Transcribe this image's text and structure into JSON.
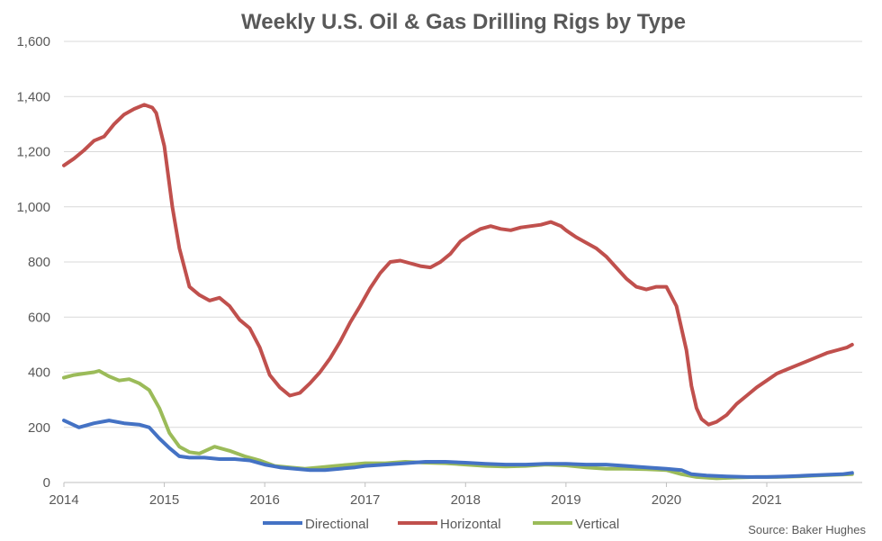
{
  "chart_data": {
    "type": "line",
    "title": "Weekly U.S. Oil & Gas Drilling Rigs by Type",
    "xlabel": "",
    "ylabel": "",
    "xlim": [
      2014.0,
      2021.95
    ],
    "ylim": [
      0,
      1600
    ],
    "x_ticks": [
      "2014",
      "2015",
      "2016",
      "2017",
      "2018",
      "2019",
      "2020",
      "2021"
    ],
    "y_ticks": [
      "0",
      "200",
      "400",
      "600",
      "800",
      "1,000",
      "1,200",
      "1,400",
      "1,600"
    ],
    "grid": true,
    "legend_position": "bottom",
    "source": "Source: Baker Hughes",
    "series": [
      {
        "name": "Directional",
        "color": "#4472c4",
        "x": [
          2014.0,
          2014.15,
          2014.3,
          2014.45,
          2014.6,
          2014.75,
          2014.85,
          2014.95,
          2015.05,
          2015.15,
          2015.25,
          2015.4,
          2015.55,
          2015.7,
          2015.85,
          2016.0,
          2016.15,
          2016.3,
          2016.45,
          2016.6,
          2016.75,
          2016.9,
          2017.0,
          2017.2,
          2017.4,
          2017.6,
          2017.8,
          2018.0,
          2018.2,
          2018.4,
          2018.6,
          2018.8,
          2019.0,
          2019.2,
          2019.4,
          2019.6,
          2019.8,
          2020.0,
          2020.15,
          2020.25,
          2020.4,
          2020.6,
          2020.8,
          2021.0,
          2021.2,
          2021.4,
          2021.6,
          2021.75,
          2021.85
        ],
        "values": [
          225,
          200,
          215,
          225,
          215,
          210,
          200,
          160,
          125,
          95,
          90,
          90,
          85,
          85,
          80,
          65,
          55,
          50,
          45,
          45,
          50,
          55,
          60,
          65,
          70,
          75,
          75,
          72,
          68,
          65,
          65,
          68,
          68,
          65,
          65,
          60,
          55,
          50,
          45,
          30,
          25,
          22,
          20,
          20,
          22,
          25,
          28,
          30,
          35
        ]
      },
      {
        "name": "Horizontal",
        "color": "#c0504d",
        "x": [
          2014.0,
          2014.1,
          2014.2,
          2014.3,
          2014.4,
          2014.5,
          2014.6,
          2014.7,
          2014.8,
          2014.88,
          2014.92,
          2015.0,
          2015.08,
          2015.15,
          2015.25,
          2015.35,
          2015.45,
          2015.55,
          2015.65,
          2015.75,
          2015.85,
          2015.95,
          2016.05,
          2016.15,
          2016.25,
          2016.35,
          2016.45,
          2016.55,
          2016.65,
          2016.75,
          2016.85,
          2016.95,
          2017.05,
          2017.15,
          2017.25,
          2017.35,
          2017.45,
          2017.55,
          2017.65,
          2017.75,
          2017.85,
          2017.95,
          2018.05,
          2018.15,
          2018.25,
          2018.35,
          2018.45,
          2018.55,
          2018.65,
          2018.75,
          2018.85,
          2018.95,
          2019.0,
          2019.1,
          2019.2,
          2019.3,
          2019.4,
          2019.5,
          2019.6,
          2019.7,
          2019.8,
          2019.9,
          2020.0,
          2020.1,
          2020.2,
          2020.25,
          2020.3,
          2020.35,
          2020.42,
          2020.5,
          2020.6,
          2020.7,
          2020.8,
          2020.9,
          2021.0,
          2021.1,
          2021.2,
          2021.3,
          2021.4,
          2021.5,
          2021.6,
          2021.7,
          2021.8,
          2021.85
        ],
        "values": [
          1150,
          1175,
          1205,
          1240,
          1255,
          1300,
          1335,
          1355,
          1370,
          1360,
          1340,
          1220,
          1000,
          850,
          710,
          680,
          660,
          670,
          640,
          590,
          560,
          490,
          390,
          345,
          315,
          325,
          360,
          400,
          450,
          510,
          580,
          640,
          705,
          760,
          800,
          805,
          795,
          785,
          780,
          800,
          830,
          875,
          900,
          920,
          930,
          920,
          915,
          925,
          930,
          935,
          945,
          930,
          915,
          890,
          870,
          850,
          820,
          780,
          740,
          710,
          700,
          710,
          710,
          640,
          480,
          350,
          270,
          230,
          210,
          220,
          245,
          285,
          315,
          345,
          370,
          395,
          410,
          425,
          440,
          455,
          470,
          480,
          490,
          500
        ]
      },
      {
        "name": "Vertical",
        "color": "#9bbb59",
        "x": [
          2014.0,
          2014.1,
          2014.2,
          2014.3,
          2014.35,
          2014.45,
          2014.55,
          2014.65,
          2014.75,
          2014.85,
          2014.95,
          2015.05,
          2015.15,
          2015.25,
          2015.35,
          2015.5,
          2015.65,
          2015.8,
          2015.95,
          2016.1,
          2016.25,
          2016.4,
          2016.55,
          2016.7,
          2016.85,
          2017.0,
          2017.2,
          2017.4,
          2017.6,
          2017.8,
          2018.0,
          2018.2,
          2018.4,
          2018.6,
          2018.8,
          2019.0,
          2019.2,
          2019.4,
          2019.6,
          2019.8,
          2020.0,
          2020.15,
          2020.3,
          2020.5,
          2020.7,
          2020.9,
          2021.1,
          2021.3,
          2021.5,
          2021.7,
          2021.85
        ],
        "values": [
          380,
          390,
          395,
          400,
          405,
          385,
          370,
          375,
          360,
          335,
          270,
          180,
          130,
          110,
          105,
          130,
          115,
          95,
          80,
          60,
          55,
          50,
          55,
          60,
          65,
          70,
          70,
          75,
          72,
          70,
          65,
          60,
          58,
          60,
          65,
          62,
          55,
          50,
          50,
          48,
          45,
          30,
          20,
          15,
          18,
          20,
          20,
          22,
          25,
          28,
          30
        ]
      }
    ]
  }
}
